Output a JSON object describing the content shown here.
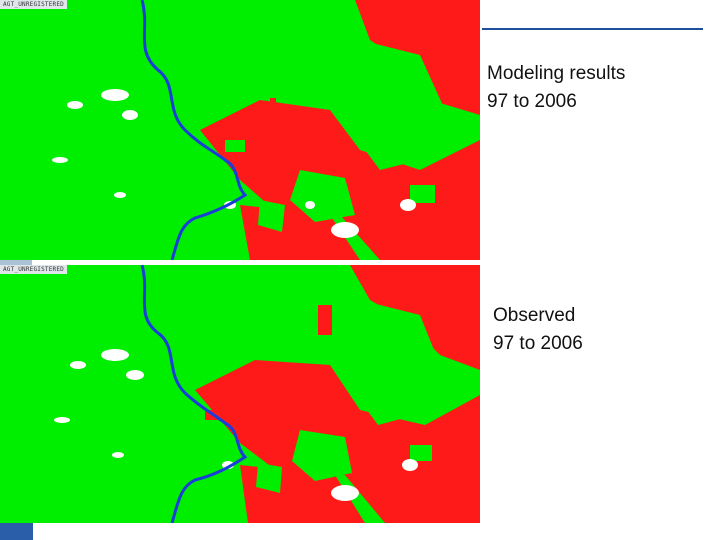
{
  "panels": [
    {
      "id": "modeled",
      "caption_line1": "Modeling results",
      "caption_line2": "97 to 2006",
      "map_label": "AGT_UNREGISTERED"
    },
    {
      "id": "observed",
      "caption_line1": "Observed",
      "caption_line2": "97 to 2006",
      "map_label": "AGT_UNREGISTERED"
    }
  ],
  "legend_colors": {
    "vegetation": "#00ee00",
    "change": "#ff1a1a",
    "river": "#1a3fd8",
    "clearing": "#ffffff"
  },
  "decor_colors": {
    "rule": "#1f4e9c",
    "corner_block": "#2b5ea8",
    "gap_tab": "#a9c2d6"
  }
}
